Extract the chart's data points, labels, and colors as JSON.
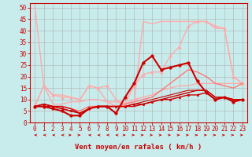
{
  "background_color": "#c8ecec",
  "grid_color": "#b0b0b0",
  "xlabel": "Vent moyen/en rafales ( km/h )",
  "ylim": [
    0,
    52
  ],
  "xlim": [
    -0.5,
    23.5
  ],
  "yticks": [
    0,
    5,
    10,
    15,
    20,
    25,
    30,
    35,
    40,
    45,
    50
  ],
  "xticks": [
    0,
    1,
    2,
    3,
    4,
    5,
    6,
    7,
    8,
    9,
    10,
    11,
    12,
    13,
    14,
    15,
    16,
    17,
    18,
    19,
    20,
    21,
    22,
    23
  ],
  "lines": [
    {
      "x": [
        0,
        1,
        2,
        3,
        4,
        5,
        6,
        7,
        8,
        9,
        10,
        11,
        12,
        13,
        14,
        15,
        16,
        17,
        18,
        19,
        20,
        21,
        22,
        23
      ],
      "y": [
        51,
        16,
        8,
        8,
        9,
        9,
        10,
        10,
        9,
        9,
        8,
        10,
        11,
        12,
        14,
        15,
        16,
        16,
        17,
        17,
        17,
        17,
        17,
        17
      ],
      "color": "#ffaaaa",
      "lw": 1.0,
      "marker": null
    },
    {
      "x": [
        0,
        1,
        2,
        3,
        4,
        5,
        6,
        7,
        8,
        9,
        10,
        11,
        12,
        13,
        14,
        15,
        16,
        17,
        18,
        19,
        20,
        21,
        22,
        23
      ],
      "y": [
        7,
        16,
        12,
        11,
        11,
        10,
        16,
        15,
        16,
        10,
        8,
        16,
        21,
        22,
        22,
        29,
        33,
        42,
        44,
        44,
        42,
        41,
        20,
        17
      ],
      "color": "#ffaaaa",
      "lw": 1.0,
      "marker": "^",
      "ms": 2.5
    },
    {
      "x": [
        0,
        1,
        2,
        3,
        4,
        5,
        6,
        7,
        8,
        9,
        10,
        11,
        12,
        13,
        14,
        15,
        16,
        17,
        18,
        19,
        20,
        21,
        22,
        23
      ],
      "y": [
        7,
        16,
        12,
        12,
        11,
        10,
        16,
        15,
        9,
        7,
        7,
        8,
        44,
        43,
        44,
        44,
        44,
        44,
        44,
        44,
        41,
        41,
        20,
        17
      ],
      "color": "#ffaaaa",
      "lw": 1.0,
      "marker": null
    },
    {
      "x": [
        0,
        1,
        2,
        3,
        4,
        5,
        6,
        7,
        8,
        9,
        10,
        11,
        12,
        13,
        14,
        15,
        16,
        17,
        18,
        19,
        20,
        21,
        22,
        23
      ],
      "y": [
        7,
        8,
        7,
        7,
        6,
        5,
        7,
        7,
        7,
        7,
        8,
        9,
        10,
        11,
        14,
        17,
        20,
        23,
        22,
        20,
        17,
        16,
        15,
        17
      ],
      "color": "#ff7777",
      "lw": 1.0,
      "marker": null
    },
    {
      "x": [
        0,
        1,
        2,
        3,
        4,
        5,
        6,
        7,
        8,
        9,
        10,
        11,
        12,
        13,
        14,
        15,
        16,
        17,
        18,
        19,
        20,
        21,
        22,
        23
      ],
      "y": [
        7,
        7,
        6,
        5,
        3,
        3,
        6,
        7,
        7,
        4,
        11,
        17,
        26,
        29,
        23,
        24,
        25,
        26,
        18,
        13,
        10,
        11,
        9,
        10
      ],
      "color": "#cc0000",
      "lw": 1.5,
      "marker": "o",
      "ms": 2.5
    },
    {
      "x": [
        0,
        1,
        2,
        3,
        4,
        5,
        6,
        7,
        8,
        9,
        10,
        11,
        12,
        13,
        14,
        15,
        16,
        17,
        18,
        19,
        20,
        21,
        22,
        23
      ],
      "y": [
        7,
        8,
        7,
        6,
        5,
        4,
        6,
        7,
        7,
        7,
        7,
        8,
        8,
        9,
        10,
        10,
        11,
        12,
        12,
        13,
        10,
        11,
        10,
        10
      ],
      "color": "#cc0000",
      "lw": 1.0,
      "marker": "s",
      "ms": 2.0
    },
    {
      "x": [
        0,
        1,
        2,
        3,
        4,
        5,
        6,
        7,
        8,
        9,
        10,
        11,
        12,
        13,
        14,
        15,
        16,
        17,
        18,
        19,
        20,
        21,
        22,
        23
      ],
      "y": [
        7,
        7,
        7,
        7,
        6,
        4,
        6,
        7,
        7,
        7,
        7,
        7,
        8,
        9,
        10,
        11,
        12,
        13,
        14,
        14,
        11,
        11,
        10,
        10
      ],
      "color": "#cc0000",
      "lw": 1.0,
      "marker": null
    },
    {
      "x": [
        0,
        1,
        2,
        3,
        4,
        5,
        6,
        7,
        8,
        9,
        10,
        11,
        12,
        13,
        14,
        15,
        16,
        17,
        18,
        19,
        20,
        21,
        22,
        23
      ],
      "y": [
        7,
        8,
        7,
        6,
        5,
        4,
        6,
        7,
        7,
        7,
        7,
        8,
        9,
        10,
        11,
        12,
        13,
        14,
        14,
        14,
        11,
        11,
        10,
        10
      ],
      "color": "#cc0000",
      "lw": 0.8,
      "marker": null
    }
  ],
  "arrow_color": "#cc0000",
  "xlabel_fontsize": 6.5,
  "tick_fontsize": 5.5
}
